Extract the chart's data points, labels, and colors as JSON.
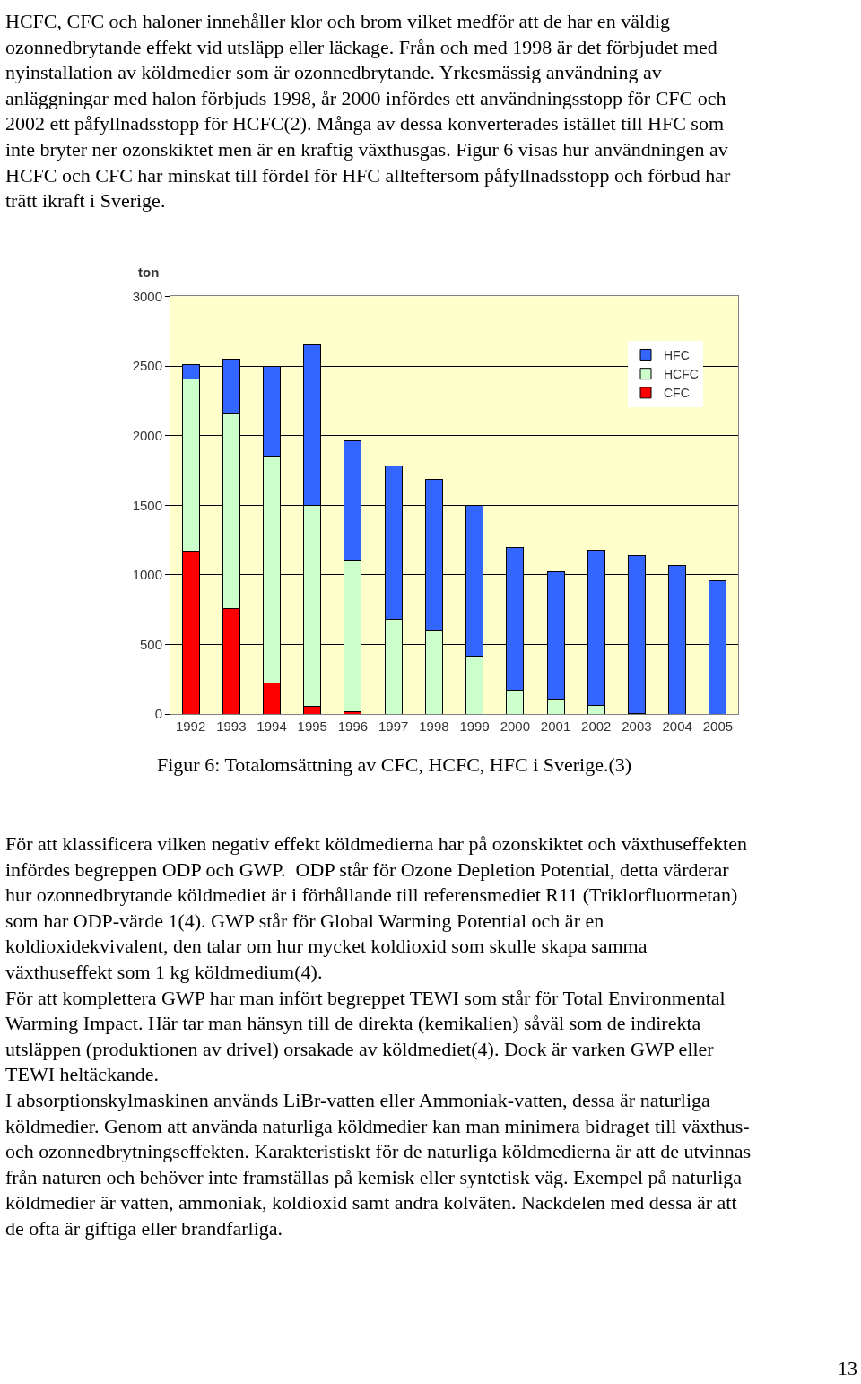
{
  "chart_data": {
    "type": "bar",
    "stacked": true,
    "ylabel": "ton",
    "categories": [
      "1992",
      "1993",
      "1994",
      "1995",
      "1996",
      "1997",
      "1998",
      "1999",
      "2000",
      "2001",
      "2002",
      "2003",
      "2004",
      "2005"
    ],
    "series": [
      {
        "name": "CFC",
        "color": "#ff0000",
        "values": [
          1170,
          755,
          225,
          55,
          15,
          0,
          0,
          0,
          0,
          0,
          0,
          0,
          0,
          0
        ]
      },
      {
        "name": "HCFC",
        "color": "#ccffcc",
        "values": [
          1240,
          1400,
          1630,
          1445,
          1090,
          680,
          605,
          415,
          170,
          110,
          65,
          5,
          0,
          0
        ]
      },
      {
        "name": "HFC",
        "color": "#3366ff",
        "values": [
          100,
          395,
          640,
          1150,
          860,
          1105,
          1080,
          1085,
          1025,
          910,
          1115,
          1135,
          1065,
          955
        ]
      }
    ],
    "ylim": [
      0,
      3000
    ],
    "yticks": [
      0,
      500,
      1000,
      1500,
      2000,
      2500,
      3000
    ],
    "grid": "y",
    "legend": "top right",
    "annotations": [
      "HCFC, CFC och haloner innehåller klor och brom vilket medför att de har en väldig\nozonnedbrytande effekt vid utsläpp eller läckage. Från och med 1998 är det förbjudet med\nnyinstallation av köldmedier som är ozonnedbrytande. Yrkesmässig användning av\nanläggningar med halon förbjuds 1998, år 2000 infördes ett användningsstopp för CFC och\n2002 ett påfyllnadsstopp för HCFC(2). Många av dessa konverterades istället till HFC som\ninte bryter ner ozonskiktet men är en kraftig växthusgas. Figur 6 visas hur användningen av\nHCFC och CFC har minskat till fördel för HFC allteftersom påfyllnadsstopp och förbud har\nträtt ikraft i Sverige.",
      "Figur 6: Totalomsättning av CFC, HCFC, HFC i Sverige.(3)",
      "För att klassificera vilken negativ effekt köldmedierna har på ozonskiktet och växthuseffekten\ninfördes begreppen ODP och GWP.  ODP står för Ozone Depletion Potential, detta värderar\nhur ozonnedbrytande köldmediet är i förhållande till referensmediet R11 (Triklorfluormetan)\nsom har ODP-värde 1(4). GWP står för Global Warming Potential och är en\nkoldioxidekvivalent, den talar om hur mycket koldioxid som skulle skapa samma\nväxthuseffekt som 1 kg köldmedium(4).\nFör att komplettera GWP har man infört begreppet TEWI som står för Total Environmental\nWarming Impact. Här tar man hänsyn till de direkta (kemikalien) såväl som de indirekta\nutsläppen (produktionen av drivel) orsakade av köldmediet(4). Dock är varken GWP eller\nTEWI heltäckande.\nI absorptionskylmaskinen används LiBr-vatten eller Ammoniak-vatten, dessa är naturliga\nköldmedier. Genom att använda naturliga köldmedier kan man minimera bidraget till växthus-\noch ozonnedbrytningseffekten. Karakteristiskt för de naturliga köldmedierna är att de utvinnas\nfrån naturen och behöver inte framställas på kemisk eller syntetisk väg. Exempel på naturliga\nköldmedier är vatten, ammoniak, koldioxid samt andra kolväten. Nackdelen med dessa är att\nde ofta är giftiga eller brandfarliga.",
      "13"
    ]
  }
}
